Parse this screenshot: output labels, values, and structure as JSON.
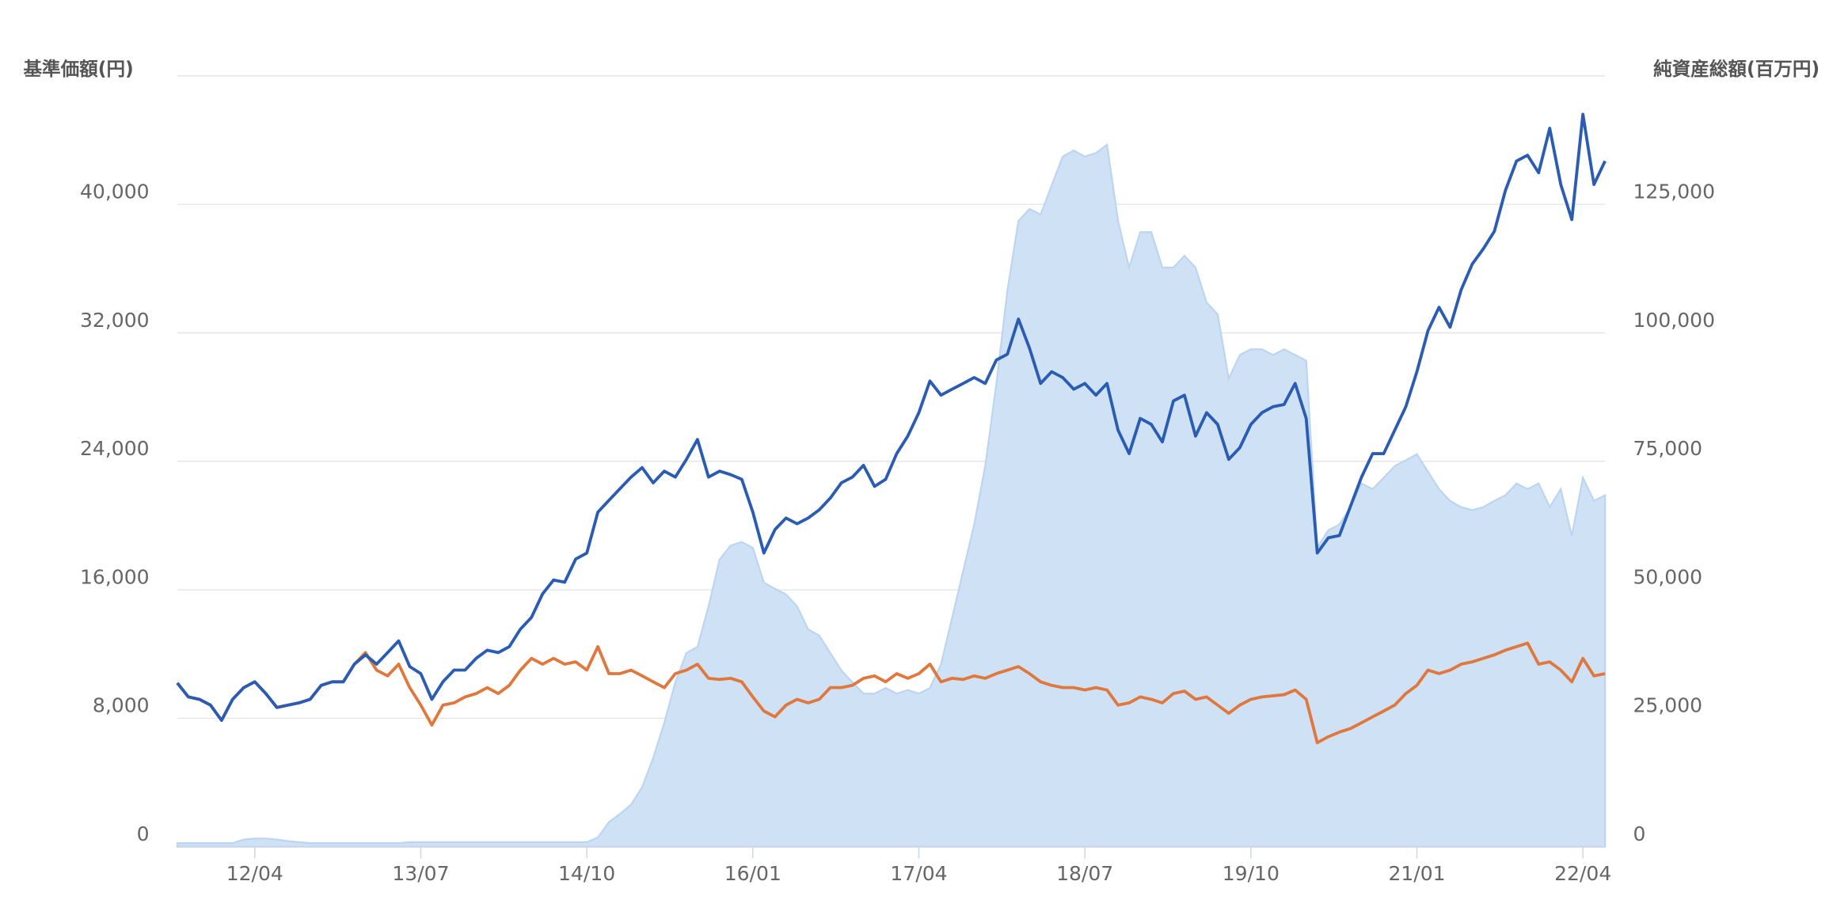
{
  "chart_data": {
    "type": "line",
    "y_label": "基準価額(円)",
    "y2_label": "純資産総額(百万円)",
    "categories": [
      null,
      null,
      null,
      null,
      null,
      null,
      null,
      "12/04",
      null,
      null,
      null,
      null,
      null,
      null,
      null,
      null,
      null,
      null,
      null,
      null,
      null,
      null,
      "13/07",
      null,
      null,
      null,
      null,
      null,
      null,
      null,
      null,
      null,
      null,
      null,
      null,
      null,
      null,
      "14/10",
      null,
      null,
      null,
      null,
      null,
      null,
      null,
      null,
      null,
      null,
      null,
      null,
      null,
      null,
      "16/01",
      null,
      null,
      null,
      null,
      null,
      null,
      null,
      null,
      null,
      null,
      null,
      null,
      null,
      null,
      "17/04",
      null,
      null,
      null,
      null,
      null,
      null,
      null,
      null,
      null,
      null,
      null,
      null,
      null,
      null,
      "18/07",
      null,
      null,
      null,
      null,
      null,
      null,
      null,
      null,
      null,
      null,
      null,
      null,
      null,
      null,
      "19/10",
      null,
      null,
      null,
      null,
      null,
      null,
      null,
      null,
      null,
      null,
      null,
      null,
      null,
      null,
      "21/01",
      null,
      null,
      null,
      null,
      null,
      null,
      null,
      null,
      null,
      null,
      null,
      null,
      null,
      null,
      "22/04",
      null,
      null
    ],
    "ylim": [
      0,
      48000
    ],
    "yticks": [
      0,
      {
        "value": 8000,
        "label": "8,000"
      },
      {
        "value": 16000,
        "label": "16,000"
      },
      {
        "value": 24000,
        "label": "24,000"
      },
      {
        "value": 32000,
        "label": "32,000"
      },
      {
        "value": 40000,
        "label": "40,000"
      }
    ],
    "y2lim": [
      0,
      150000
    ],
    "y2ticks": [
      0,
      {
        "value": 25000,
        "label": "25,000"
      },
      {
        "value": 50000,
        "label": "50,000"
      },
      {
        "value": 75000,
        "label": "75,000"
      },
      {
        "value": 100000,
        "label": "100,000"
      },
      {
        "value": 125000,
        "label": "125,000"
      }
    ],
    "grid": true,
    "series": [
      {
        "type": "area",
        "axis": "y2",
        "color": "#cfe1f5",
        "values": [
          700,
          700,
          700,
          700,
          700,
          700,
          1400,
          1600,
          1600,
          1400,
          1100,
          900,
          700,
          700,
          700,
          700,
          700,
          700,
          700,
          700,
          700,
          900,
          900,
          900,
          900,
          900,
          900,
          900,
          900,
          900,
          900,
          900,
          900,
          900,
          900,
          900,
          900,
          900,
          1800,
          4800,
          6400,
          8200,
          11600,
          17300,
          24100,
          32000,
          37700,
          38900,
          46800,
          55900,
          58600,
          59300,
          58200,
          51400,
          50200,
          49100,
          46800,
          42300,
          41100,
          37700,
          34300,
          32000,
          29800,
          29800,
          30900,
          29800,
          30500,
          29800,
          30900,
          35500,
          44500,
          53600,
          62700,
          74100,
          90000,
          108200,
          121800,
          124100,
          123000,
          128700,
          134300,
          135500,
          134300,
          135000,
          136600,
          121800,
          112700,
          119600,
          119600,
          112700,
          112700,
          115000,
          112700,
          105900,
          103600,
          91100,
          95700,
          96800,
          96800,
          95700,
          96800,
          95700,
          94600,
          58200,
          61600,
          62700,
          66100,
          70700,
          69600,
          71800,
          74100,
          75200,
          76400,
          73000,
          69600,
          67300,
          66100,
          65500,
          66100,
          67300,
          68400,
          70700,
          69600,
          70700,
          66100,
          69600,
          60500,
          71800,
          67300,
          68400
        ]
      },
      {
        "type": "line",
        "axis": "y",
        "color": "#e0783e",
        "values": [
          10200,
          9330,
          9180,
          8820,
          7870,
          9180,
          9910,
          10270,
          9540,
          8670,
          8820,
          8960,
          9180,
          10050,
          10270,
          10270,
          11370,
          12090,
          11000,
          10640,
          11370,
          9910,
          8820,
          7580,
          8820,
          8960,
          9330,
          9540,
          9910,
          9540,
          10050,
          11000,
          11730,
          11370,
          11730,
          11370,
          11510,
          11000,
          12460,
          10780,
          10780,
          11000,
          10640,
          10270,
          9910,
          10780,
          11000,
          11370,
          10490,
          10420,
          10490,
          10270,
          9330,
          8450,
          8090,
          8820,
          9180,
          8960,
          9180,
          9910,
          9910,
          10050,
          10490,
          10640,
          10270,
          10780,
          10490,
          10780,
          11370,
          10270,
          10490,
          10420,
          10640,
          10490,
          10780,
          11000,
          11220,
          10780,
          10270,
          10050,
          9910,
          9910,
          9760,
          9910,
          9760,
          8820,
          8960,
          9330,
          9180,
          8960,
          9540,
          9690,
          9180,
          9330,
          8820,
          8310,
          8820,
          9180,
          9330,
          9400,
          9470,
          9760,
          9180,
          6480,
          6850,
          7140,
          7360,
          7720,
          8090,
          8450,
          8820,
          9540,
          10050,
          11000,
          10780,
          11000,
          11370,
          11510,
          11730,
          11950,
          12240,
          12460,
          12680,
          11370,
          11510,
          11000,
          10270,
          11730,
          10640,
          10780
        ]
      },
      {
        "type": "line",
        "axis": "y",
        "color": "#2a5cb3",
        "values": [
          10200,
          9330,
          9180,
          8820,
          7870,
          9180,
          9910,
          10270,
          9540,
          8670,
          8820,
          8960,
          9180,
          10050,
          10270,
          10270,
          11370,
          11950,
          11370,
          12090,
          12820,
          11220,
          10780,
          9180,
          10270,
          11000,
          11000,
          11730,
          12240,
          12090,
          12460,
          13550,
          14280,
          15740,
          16610,
          16470,
          17920,
          18290,
          20840,
          21570,
          22300,
          23020,
          23610,
          22660,
          23390,
          23020,
          24120,
          25360,
          23020,
          23390,
          23170,
          22880,
          20840,
          18290,
          19750,
          20470,
          20110,
          20470,
          20980,
          21710,
          22660,
          23020,
          23750,
          22440,
          22880,
          24480,
          25570,
          27030,
          29000,
          28120,
          28490,
          28850,
          29220,
          28850,
          30310,
          30670,
          32860,
          31040,
          28850,
          29580,
          29220,
          28490,
          28850,
          28120,
          28850,
          25940,
          24480,
          26670,
          26300,
          25210,
          27760,
          28120,
          25570,
          27030,
          26300,
          24120,
          24850,
          26300,
          27030,
          27400,
          27540,
          28850,
          26670,
          18290,
          19240,
          19380,
          21200,
          23020,
          24480,
          24480,
          25940,
          27400,
          29580,
          32130,
          33590,
          32350,
          34680,
          36280,
          37230,
          38320,
          40870,
          42700,
          43060,
          41970,
          44740,
          41240,
          39050,
          45610,
          41240,
          42700
        ]
      }
    ]
  }
}
